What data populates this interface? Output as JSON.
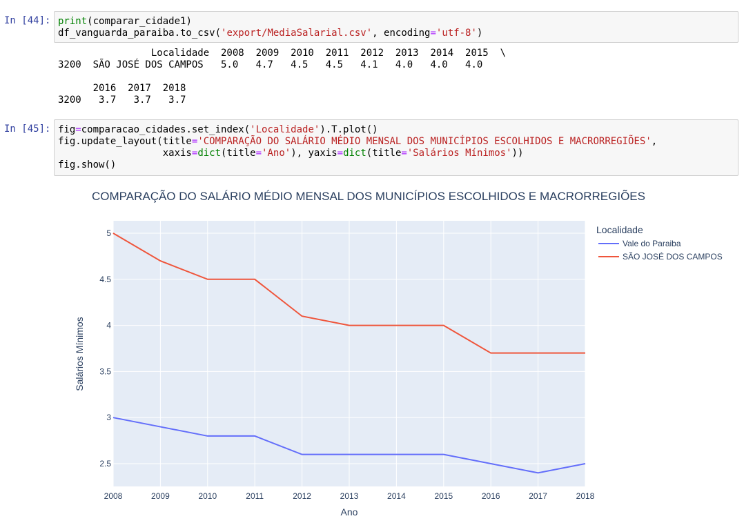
{
  "cell44": {
    "prompt": "In [44]:",
    "lines": [
      [
        [
          "fn",
          "print"
        ],
        [
          "t",
          "(comparar_cidade1)"
        ]
      ],
      [
        [
          "t",
          "df_vanguarda_paraiba.to_csv("
        ],
        [
          "s",
          "'export/MediaSalarial.csv'"
        ],
        [
          "t",
          ", encoding"
        ],
        [
          "o",
          "="
        ],
        [
          "s",
          "'utf-8'"
        ],
        [
          "t",
          ")"
        ]
      ]
    ],
    "output": [
      "                Localidade  2008  2009  2010  2011  2012  2013  2014  2015  \\",
      "3200  SÃO JOSÉ DOS CAMPOS   5.0   4.7   4.5   4.5   4.1   4.0   4.0   4.0",
      "",
      "      2016  2017  2018",
      "3200   3.7   3.7   3.7"
    ]
  },
  "cell45": {
    "prompt": "In [45]:",
    "lines": [
      [
        [
          "t",
          "fig"
        ],
        [
          "o",
          "="
        ],
        [
          "t",
          "comparacao_cidades.set_index("
        ],
        [
          "s",
          "'Localidade'"
        ],
        [
          "t",
          ").T.plot()"
        ]
      ],
      [
        [
          "t",
          "fig.update_layout(title"
        ],
        [
          "o",
          "="
        ],
        [
          "s",
          "'COMPARAÇÃO DO SALÁRIO MÉDIO MENSAL DOS MUNICÍPIOS ESCOLHIDOS E MACRORREGIÕES'"
        ],
        [
          "t",
          ","
        ]
      ],
      [
        [
          "t",
          "                  xaxis"
        ],
        [
          "o",
          "="
        ],
        [
          "fn",
          "dict"
        ],
        [
          "t",
          "(title"
        ],
        [
          "o",
          "="
        ],
        [
          "s",
          "'Ano'"
        ],
        [
          "t",
          "), yaxis"
        ],
        [
          "o",
          "="
        ],
        [
          "fn",
          "dict"
        ],
        [
          "t",
          "(title"
        ],
        [
          "o",
          "="
        ],
        [
          "s",
          "'Salários Mínimos'"
        ],
        [
          "t",
          "))"
        ]
      ],
      [
        [
          "t",
          "fig.show()"
        ]
      ]
    ]
  },
  "chart_data": {
    "type": "line",
    "title": "COMPARAÇÃO DO SALÁRIO MÉDIO MENSAL DOS MUNICÍPIOS ESCOLHIDOS E MACRORREGIÕES",
    "xlabel": "Ano",
    "ylabel": "Salários Mínimos",
    "x": [
      "2008",
      "2009",
      "2010",
      "2011",
      "2012",
      "2013",
      "2014",
      "2015",
      "2016",
      "2017",
      "2018"
    ],
    "yticks": [
      "2.5",
      "3",
      "3.5",
      "4",
      "4.5",
      "5"
    ],
    "ylim": [
      2.3,
      5.0
    ],
    "legend_title": "Localidade",
    "legend_position": "top-right",
    "grid": true,
    "series": [
      {
        "name": "Vale do Paraiba",
        "color": "#636efa",
        "values": [
          3.0,
          2.9,
          2.8,
          2.8,
          2.6,
          2.6,
          2.6,
          2.6,
          2.5,
          2.4,
          2.5
        ]
      },
      {
        "name": "SÃO JOSÉ DOS CAMPOS",
        "color": "#ef553b",
        "values": [
          5.0,
          4.7,
          4.5,
          4.5,
          4.1,
          4.0,
          4.0,
          4.0,
          3.7,
          3.7,
          3.7
        ]
      }
    ]
  }
}
